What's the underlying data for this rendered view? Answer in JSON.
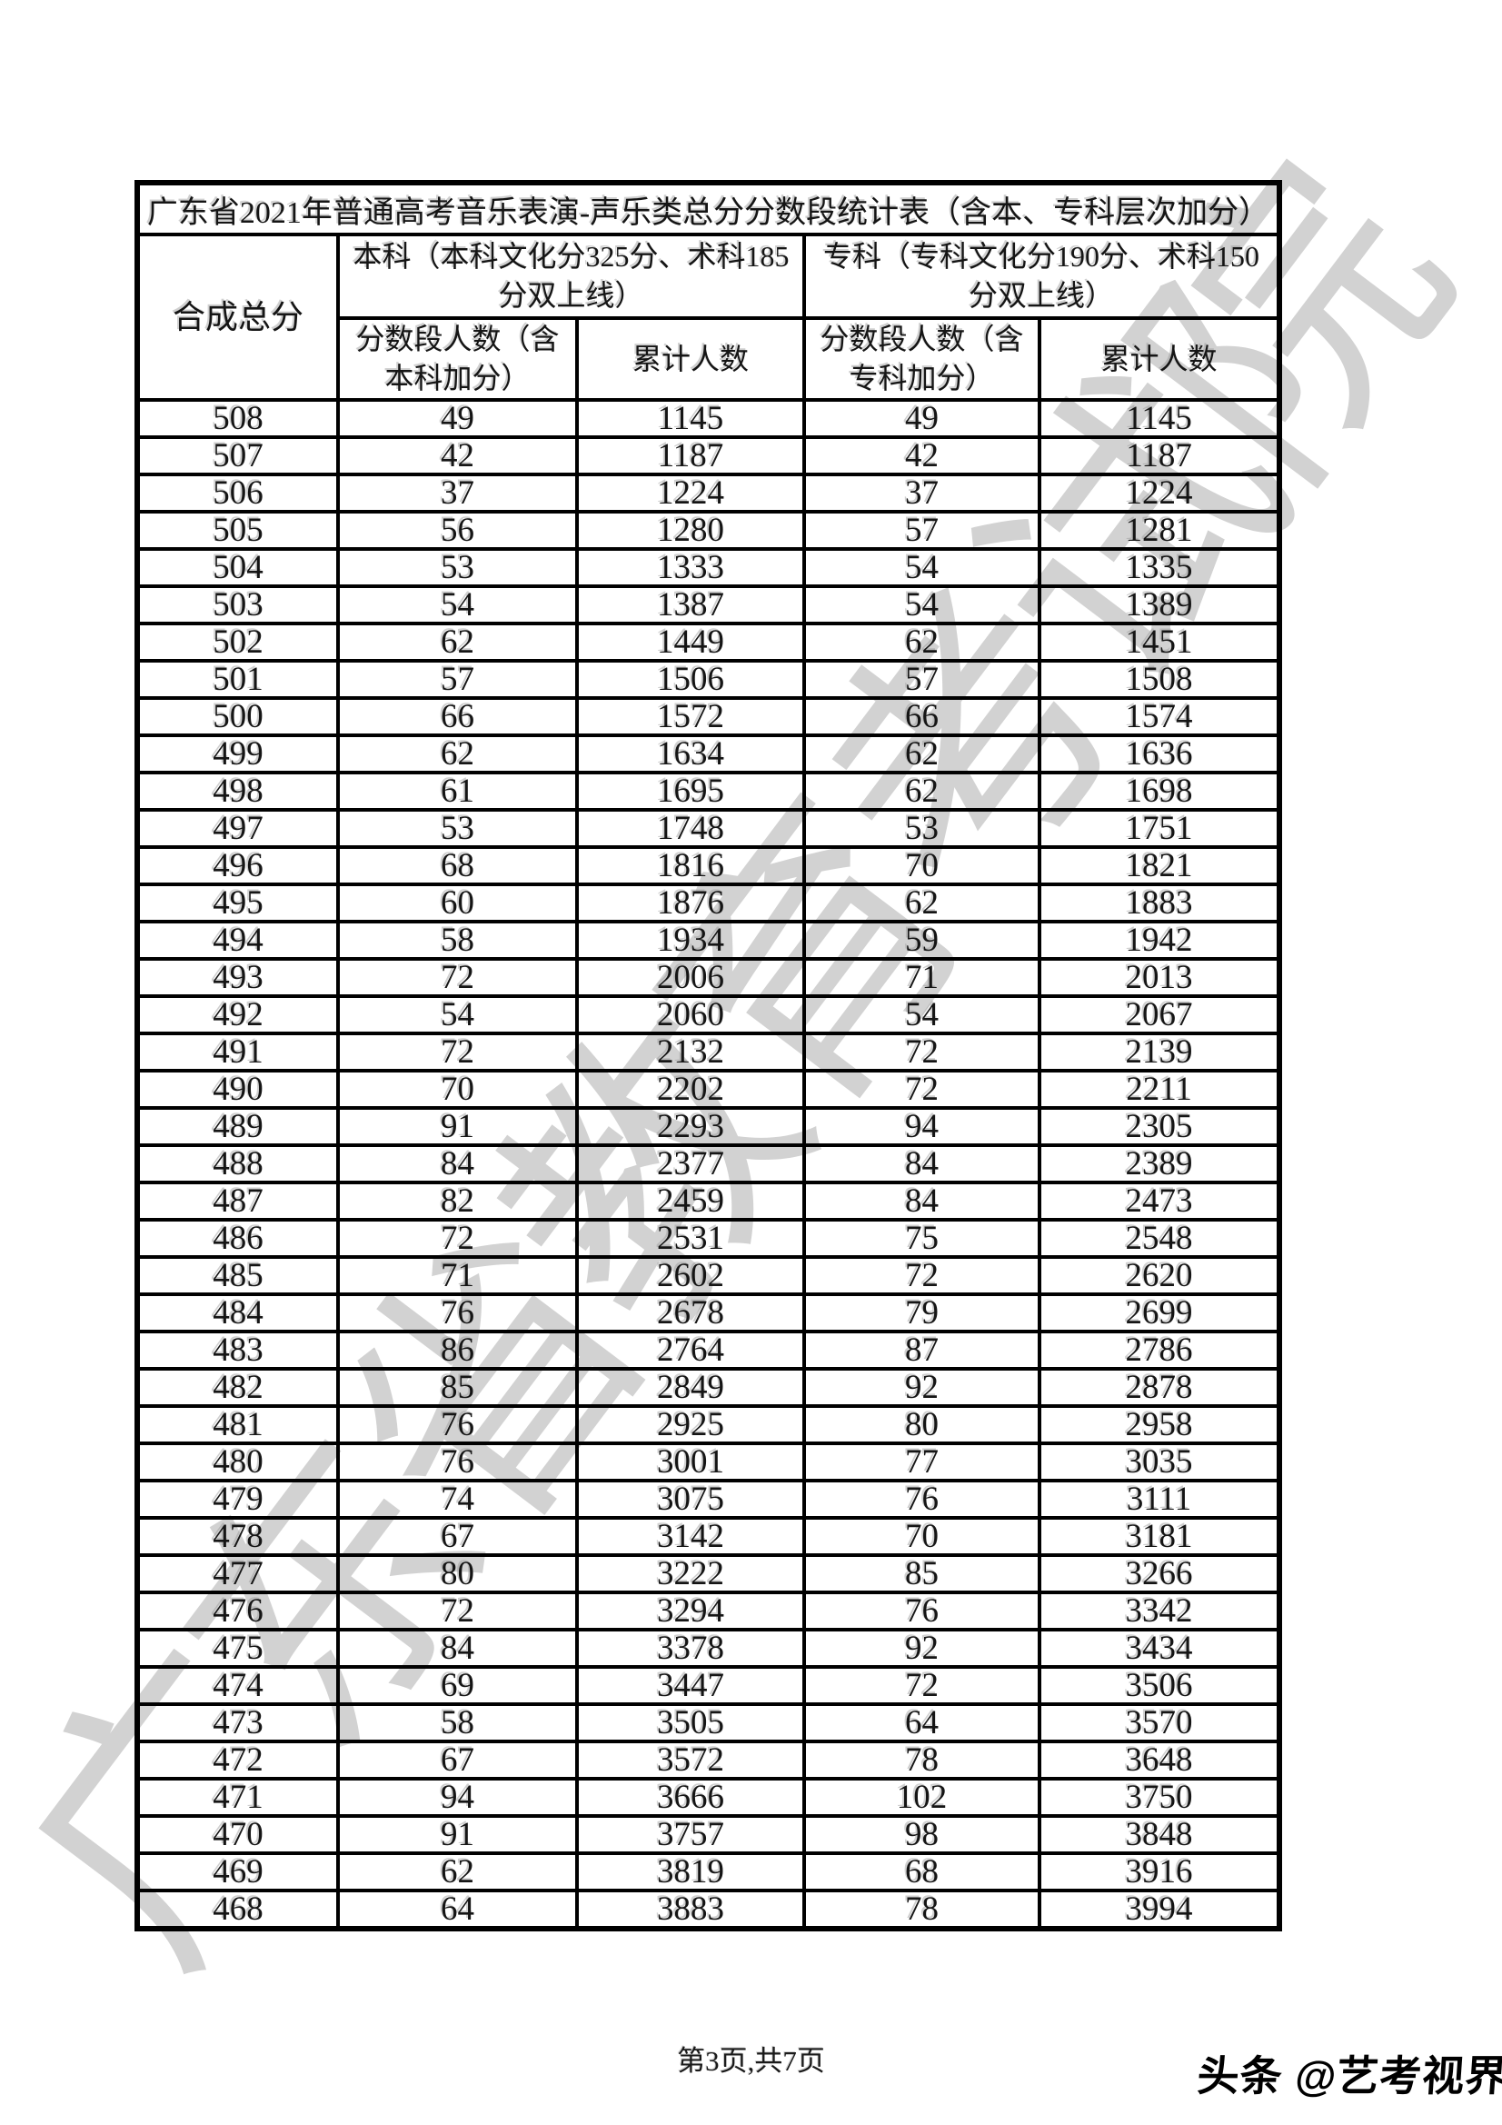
{
  "title": "广东省2021年普通高考音乐表演-声乐类总分分数段统计表（含本、专科层次加分）",
  "table": {
    "composite_header": "合成总分",
    "benke_header": "本科（本科文化分325分、术科185分双上线）",
    "zhuanke_header": "专科（专科文化分190分、术科150分双上线）",
    "sub_headers": {
      "benke_segment": "分数段人数（含本科加分）",
      "benke_cumulative": "累计人数",
      "zhuanke_segment": "分数段人数（含专科加分）",
      "zhuanke_cumulative": "累计人数"
    },
    "rows": [
      [
        508,
        49,
        1145,
        49,
        1145
      ],
      [
        507,
        42,
        1187,
        42,
        1187
      ],
      [
        506,
        37,
        1224,
        37,
        1224
      ],
      [
        505,
        56,
        1280,
        57,
        1281
      ],
      [
        504,
        53,
        1333,
        54,
        1335
      ],
      [
        503,
        54,
        1387,
        54,
        1389
      ],
      [
        502,
        62,
        1449,
        62,
        1451
      ],
      [
        501,
        57,
        1506,
        57,
        1508
      ],
      [
        500,
        66,
        1572,
        66,
        1574
      ],
      [
        499,
        62,
        1634,
        62,
        1636
      ],
      [
        498,
        61,
        1695,
        62,
        1698
      ],
      [
        497,
        53,
        1748,
        53,
        1751
      ],
      [
        496,
        68,
        1816,
        70,
        1821
      ],
      [
        495,
        60,
        1876,
        62,
        1883
      ],
      [
        494,
        58,
        1934,
        59,
        1942
      ],
      [
        493,
        72,
        2006,
        71,
        2013
      ],
      [
        492,
        54,
        2060,
        54,
        2067
      ],
      [
        491,
        72,
        2132,
        72,
        2139
      ],
      [
        490,
        70,
        2202,
        72,
        2211
      ],
      [
        489,
        91,
        2293,
        94,
        2305
      ],
      [
        488,
        84,
        2377,
        84,
        2389
      ],
      [
        487,
        82,
        2459,
        84,
        2473
      ],
      [
        486,
        72,
        2531,
        75,
        2548
      ],
      [
        485,
        71,
        2602,
        72,
        2620
      ],
      [
        484,
        76,
        2678,
        79,
        2699
      ],
      [
        483,
        86,
        2764,
        87,
        2786
      ],
      [
        482,
        85,
        2849,
        92,
        2878
      ],
      [
        481,
        76,
        2925,
        80,
        2958
      ],
      [
        480,
        76,
        3001,
        77,
        3035
      ],
      [
        479,
        74,
        3075,
        76,
        3111
      ],
      [
        478,
        67,
        3142,
        70,
        3181
      ],
      [
        477,
        80,
        3222,
        85,
        3266
      ],
      [
        476,
        72,
        3294,
        76,
        3342
      ],
      [
        475,
        84,
        3378,
        92,
        3434
      ],
      [
        474,
        69,
        3447,
        72,
        3506
      ],
      [
        473,
        58,
        3505,
        64,
        3570
      ],
      [
        472,
        67,
        3572,
        78,
        3648
      ],
      [
        471,
        94,
        3666,
        102,
        3750
      ],
      [
        470,
        91,
        3757,
        98,
        3848
      ],
      [
        469,
        62,
        3819,
        68,
        3916
      ],
      [
        468,
        64,
        3883,
        78,
        3994
      ]
    ]
  },
  "footer": {
    "page_info": "第3页,共7页"
  },
  "watermark": {
    "diagonal_text": "广东省教育考试院",
    "logo_text": "头条 @艺考视界",
    "diagonal_color": "#c8c8c8"
  }
}
